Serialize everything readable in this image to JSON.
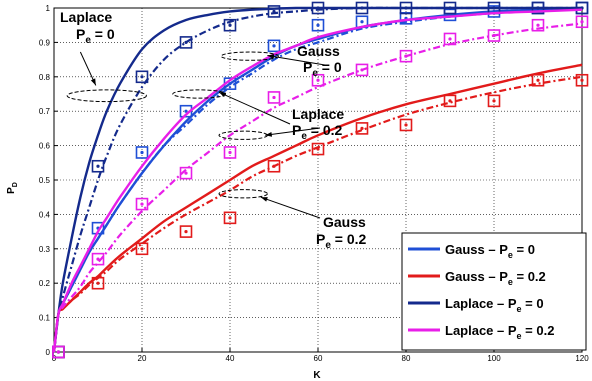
{
  "chart_data": {
    "type": "line",
    "xlabel": "K",
    "ylabel": "P",
    "ylabel_sub": "D",
    "xlim": [
      0,
      120
    ],
    "ylim": [
      0,
      1
    ],
    "xticks": [
      "0",
      "20",
      "40",
      "60",
      "80",
      "100",
      "120"
    ],
    "yticks": [
      "0",
      "0.1",
      "0.2",
      "0.3",
      "0.4",
      "0.5",
      "0.6",
      "0.7",
      "0.8",
      "0.9",
      "1"
    ],
    "grid": true,
    "legend_position": "bottom-right",
    "legend": [
      {
        "text": "Gauss – P",
        "sub": "e",
        "tail": " = 0"
      },
      {
        "text": "Gauss – P",
        "sub": "e",
        "tail": " = 0.2"
      },
      {
        "text": "Laplace – P",
        "sub": "e",
        "tail": " = 0"
      },
      {
        "text": "Laplace – P",
        "sub": "e",
        "tail": " = 0.2"
      }
    ],
    "annotations": [
      {
        "line1": "Laplace",
        "line2a": "P",
        "line2sub": "e",
        "line2b": " = 0"
      },
      {
        "line1": "Gauss",
        "line2a": "P",
        "line2sub": "e",
        "line2b": " = 0"
      },
      {
        "line1": "Laplace",
        "line2a": "P",
        "line2sub": "e",
        "line2b": " = 0.2"
      },
      {
        "line1": "Gauss",
        "line2a": "P",
        "line2sub": "e",
        "line2b": " = 0.2"
      }
    ],
    "series": [
      {
        "key": "gauss_pe0",
        "color": "#1f4fd6",
        "x": [
          0,
          1,
          2,
          4,
          6,
          8,
          10,
          12,
          15,
          20,
          25,
          30,
          35,
          40,
          45,
          50,
          55,
          60,
          70,
          80,
          90,
          100,
          110,
          120
        ],
        "theory": [
          0.0,
          0.11,
          0.14,
          0.19,
          0.24,
          0.29,
          0.33,
          0.37,
          0.43,
          0.52,
          0.6,
          0.67,
          0.73,
          0.78,
          0.82,
          0.86,
          0.89,
          0.91,
          0.945,
          0.965,
          0.98,
          0.99,
          0.995,
          1.0
        ],
        "sim": [
          0.0,
          0.11,
          0.14,
          0.19,
          0.24,
          0.29,
          0.33,
          0.37,
          0.43,
          0.52,
          0.6,
          0.66,
          0.72,
          0.77,
          0.81,
          0.85,
          0.88,
          0.9,
          0.94,
          0.96,
          0.975,
          0.985,
          0.993,
          0.998
        ],
        "markers_x": [
          1,
          10,
          20,
          30,
          40,
          50,
          60,
          70,
          80,
          90,
          100,
          110,
          120
        ],
        "markers_y": [
          0.0,
          0.36,
          0.58,
          0.7,
          0.78,
          0.89,
          0.95,
          0.96,
          0.97,
          0.98,
          0.99,
          1.0,
          1.0
        ]
      },
      {
        "key": "gauss_pe02",
        "color": "#e21b1b",
        "x": [
          0,
          1,
          2,
          4,
          6,
          8,
          10,
          12,
          15,
          20,
          25,
          30,
          35,
          40,
          45,
          50,
          55,
          60,
          70,
          80,
          90,
          100,
          110,
          120
        ],
        "theory": [
          0.0,
          0.11,
          0.125,
          0.15,
          0.175,
          0.2,
          0.22,
          0.245,
          0.28,
          0.33,
          0.38,
          0.42,
          0.46,
          0.5,
          0.54,
          0.57,
          0.6,
          0.63,
          0.68,
          0.72,
          0.75,
          0.78,
          0.81,
          0.835
        ],
        "sim": [
          0.0,
          0.11,
          0.125,
          0.15,
          0.17,
          0.195,
          0.215,
          0.235,
          0.27,
          0.315,
          0.36,
          0.4,
          0.435,
          0.47,
          0.51,
          0.54,
          0.57,
          0.595,
          0.645,
          0.69,
          0.725,
          0.755,
          0.78,
          0.8
        ],
        "markers_x": [
          1,
          10,
          20,
          30,
          40,
          50,
          60,
          70,
          80,
          90,
          100,
          110,
          120
        ],
        "markers_y": [
          0.0,
          0.2,
          0.3,
          0.35,
          0.39,
          0.54,
          0.59,
          0.65,
          0.66,
          0.73,
          0.73,
          0.79,
          0.79
        ]
      },
      {
        "key": "laplace_pe0",
        "color": "#142a8c",
        "x": [
          0,
          1,
          2,
          4,
          6,
          8,
          10,
          12,
          15,
          20,
          25,
          30,
          35,
          40,
          45,
          50,
          55,
          60,
          70,
          80,
          90,
          100,
          110,
          120
        ],
        "theory": [
          0.0,
          0.11,
          0.2,
          0.33,
          0.45,
          0.55,
          0.63,
          0.7,
          0.78,
          0.88,
          0.935,
          0.965,
          0.98,
          0.99,
          0.995,
          0.998,
          1.0,
          1.0,
          1.0,
          1.0,
          1.0,
          1.0,
          1.0,
          1.0
        ],
        "sim": [
          0.0,
          0.11,
          0.16,
          0.25,
          0.34,
          0.42,
          0.5,
          0.57,
          0.66,
          0.77,
          0.85,
          0.9,
          0.935,
          0.96,
          0.975,
          0.985,
          0.99,
          0.995,
          1.0,
          1.0,
          1.0,
          1.0,
          1.0,
          1.0
        ],
        "markers_x": [
          1,
          10,
          20,
          30,
          40,
          50,
          60,
          70,
          80,
          90,
          100,
          110,
          120
        ],
        "markers_y": [
          0.0,
          0.54,
          0.8,
          0.9,
          0.95,
          0.99,
          1.0,
          1.0,
          1.0,
          1.0,
          1.0,
          1.0,
          1.0
        ]
      },
      {
        "key": "laplace_pe02",
        "color": "#e81ee8",
        "x": [
          0,
          1,
          2,
          4,
          6,
          8,
          10,
          12,
          15,
          20,
          25,
          30,
          35,
          40,
          45,
          50,
          55,
          60,
          70,
          80,
          90,
          100,
          110,
          120
        ],
        "theory": [
          0.0,
          0.11,
          0.14,
          0.2,
          0.25,
          0.3,
          0.35,
          0.39,
          0.45,
          0.54,
          0.62,
          0.69,
          0.74,
          0.79,
          0.83,
          0.865,
          0.89,
          0.915,
          0.945,
          0.965,
          0.975,
          0.985,
          0.99,
          0.995
        ],
        "sim": [
          0.0,
          0.11,
          0.13,
          0.16,
          0.19,
          0.23,
          0.26,
          0.29,
          0.34,
          0.41,
          0.47,
          0.53,
          0.58,
          0.63,
          0.67,
          0.71,
          0.74,
          0.77,
          0.82,
          0.86,
          0.895,
          0.92,
          0.94,
          0.955
        ],
        "markers_x": [
          1,
          10,
          20,
          30,
          40,
          50,
          60,
          70,
          80,
          90,
          100,
          110,
          120
        ],
        "markers_y": [
          0.0,
          0.27,
          0.43,
          0.52,
          0.58,
          0.74,
          0.79,
          0.82,
          0.86,
          0.91,
          0.92,
          0.95,
          0.96
        ]
      }
    ]
  }
}
